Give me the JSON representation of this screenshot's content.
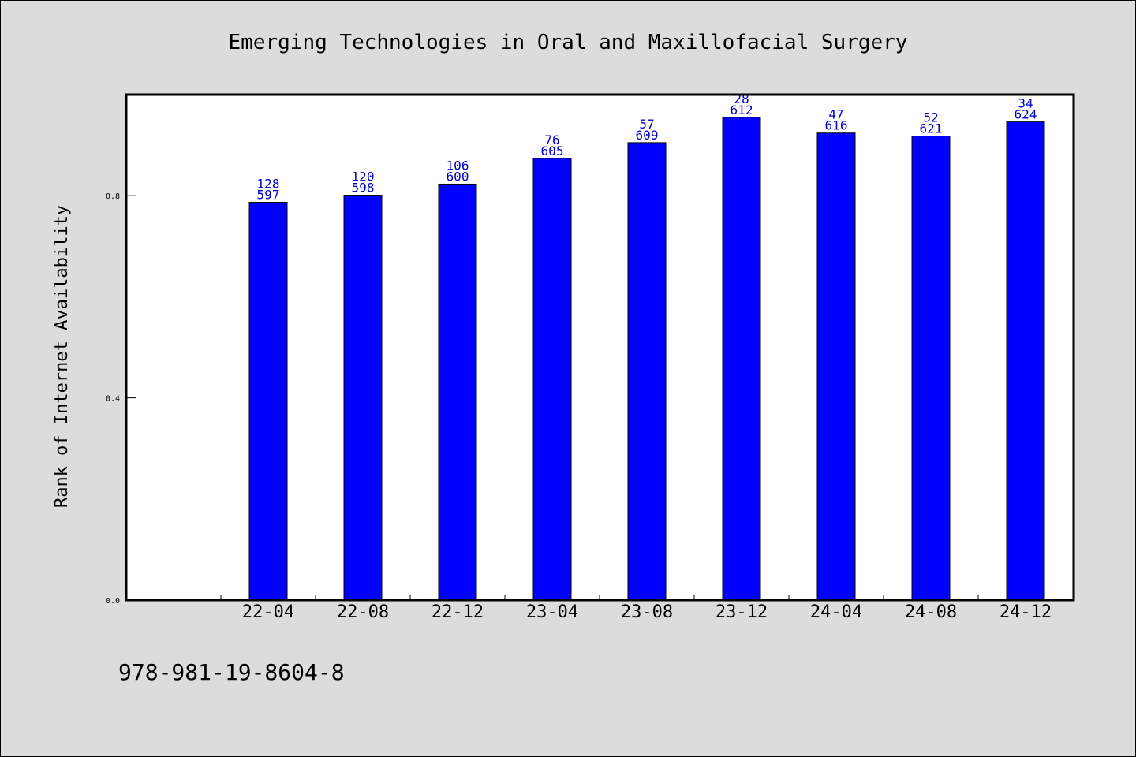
{
  "page": {
    "footer_text": "978-981-19-8604-8"
  },
  "chart_data": {
    "type": "bar",
    "title": "Emerging Technologies in Oral and Maxillofacial Surgery",
    "xlabel": "",
    "ylabel": "Rank of Internet Availability",
    "categories": [
      "22-04",
      "22-08",
      "22-12",
      "23-04",
      "23-08",
      "23-12",
      "24-04",
      "24-08",
      "24-12"
    ],
    "values": [
      0.787,
      0.801,
      0.823,
      0.874,
      0.905,
      0.955,
      0.924,
      0.918,
      0.946
    ],
    "label_top": [
      "128",
      "120",
      "106",
      "76",
      "57",
      "28",
      "47",
      "52",
      "34"
    ],
    "label_bottom": [
      "597",
      "598",
      "600",
      "605",
      "609",
      "612",
      "616",
      "621",
      "624"
    ],
    "ylim": [
      0.0,
      1.0
    ],
    "y_ticks": [
      "0.0",
      "0.4",
      "0.8"
    ],
    "grid": false,
    "bar_color": "#0000ff",
    "label_color": "#0000cc",
    "background_color": "#dcdcdc",
    "plot_background": "#ffffff"
  }
}
